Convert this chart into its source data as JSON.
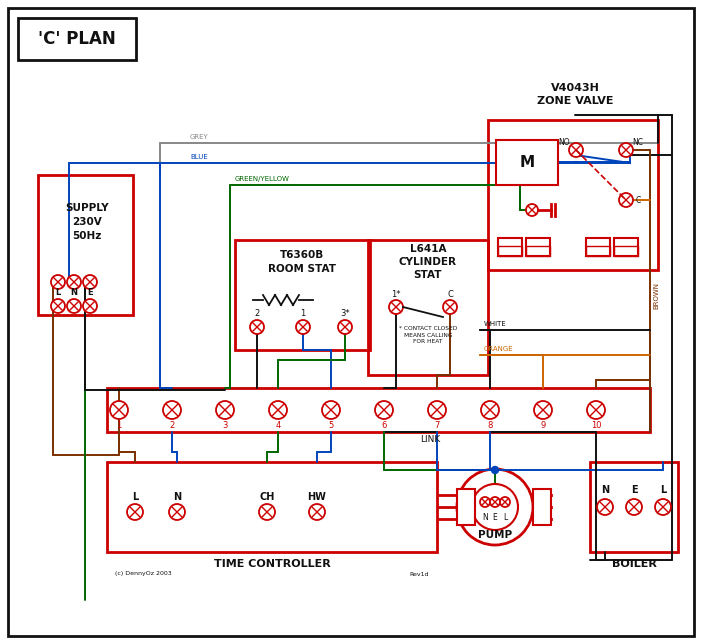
{
  "bg": "#ffffff",
  "RED": "#cc0000",
  "BLUE": "#0044bb",
  "GREEN": "#006600",
  "GREY": "#888888",
  "BROWN": "#7B3000",
  "ORANGE": "#cc6600",
  "BLACK": "#111111",
  "title": "'C' PLAN",
  "zone_valve_label1": "V4043H",
  "zone_valve_label2": "ZONE VALVE",
  "supply_label": "SUPPLY\n230V\n50Hz",
  "room_stat_label": "T6360B\nROOM STAT",
  "cyl_stat_label": "L641A\nCYLINDER\nSTAT",
  "contact_note": "* CONTACT CLOSED\nMEANS CALLING\nFOR HEAT",
  "time_ctrl_label": "TIME CONTROLLER",
  "pump_label": "PUMP",
  "boiler_label": "BOILER",
  "link_label": "LINK",
  "copyright": "(c) DennyOz 2003",
  "rev": "Rev1d",
  "grey_label": "GREY",
  "blue_label": "BLUE",
  "gy_label": "GREEN/YELLOW",
  "brown_label": "BROWN",
  "white_label": "WHITE",
  "orange_label": "ORANGE",
  "tc_terminals": [
    "L",
    "N",
    "CH",
    "HW"
  ],
  "boiler_terminals": [
    "N",
    "E",
    "L"
  ],
  "lne_labels": [
    "L",
    "N",
    "E"
  ]
}
